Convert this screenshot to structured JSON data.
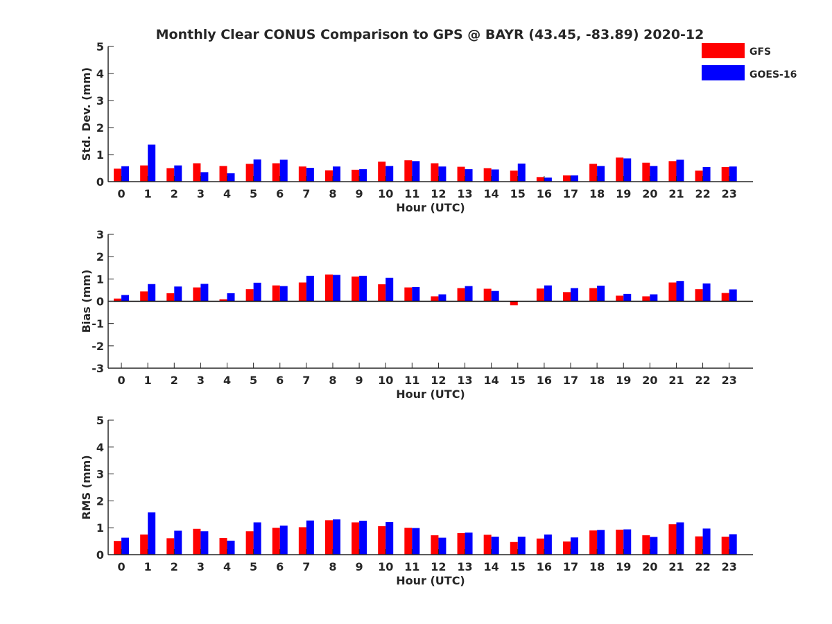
{
  "figure_title": "Monthly Clear CONUS Comparison to GPS @ BAYR (43.45, -83.89) 2020-12",
  "legend": {
    "placement": "top-right",
    "entries": [
      {
        "label": "GFS",
        "color": "#ff0000"
      },
      {
        "label": "GOES-16",
        "color": "#0000ff"
      }
    ]
  },
  "chart_data": [
    {
      "type": "bar",
      "xlabel": "Hour (UTC)",
      "ylabel": "Std. Dev. (mm)",
      "ylim": [
        0,
        5
      ],
      "yticks": [
        0,
        1,
        2,
        3,
        4,
        5
      ],
      "categories": [
        "0",
        "1",
        "2",
        "3",
        "4",
        "5",
        "6",
        "7",
        "8",
        "9",
        "10",
        "11",
        "12",
        "13",
        "14",
        "15",
        "16",
        "17",
        "18",
        "19",
        "20",
        "21",
        "22",
        "23"
      ],
      "series": [
        {
          "name": "GFS",
          "color": "#ff0000",
          "values": [
            0.48,
            0.6,
            0.5,
            0.68,
            0.58,
            0.66,
            0.68,
            0.56,
            0.42,
            0.44,
            0.74,
            0.79,
            0.68,
            0.55,
            0.5,
            0.41,
            0.17,
            0.23,
            0.66,
            0.89,
            0.7,
            0.76,
            0.41,
            0.54
          ]
        },
        {
          "name": "GOES-16",
          "color": "#0000ff",
          "values": [
            0.57,
            1.37,
            0.6,
            0.35,
            0.31,
            0.82,
            0.81,
            0.51,
            0.56,
            0.46,
            0.58,
            0.76,
            0.56,
            0.46,
            0.45,
            0.67,
            0.15,
            0.23,
            0.58,
            0.86,
            0.58,
            0.81,
            0.54,
            0.56
          ]
        }
      ]
    },
    {
      "type": "bar",
      "xlabel": "Hour (UTC)",
      "ylabel": "Bias (mm)",
      "ylim": [
        -3,
        3
      ],
      "yticks": [
        -3,
        -2,
        -1,
        0,
        1,
        2,
        3
      ],
      "categories": [
        "0",
        "1",
        "2",
        "3",
        "4",
        "5",
        "6",
        "7",
        "8",
        "9",
        "10",
        "11",
        "12",
        "13",
        "14",
        "15",
        "16",
        "17",
        "18",
        "19",
        "20",
        "21",
        "22",
        "23"
      ],
      "series": [
        {
          "name": "GFS",
          "color": "#ff0000",
          "values": [
            0.12,
            0.44,
            0.36,
            0.62,
            0.09,
            0.54,
            0.71,
            0.84,
            1.2,
            1.11,
            0.76,
            0.62,
            0.22,
            0.59,
            0.56,
            -0.18,
            0.57,
            0.41,
            0.59,
            0.25,
            0.22,
            0.84,
            0.54,
            0.37
          ]
        },
        {
          "name": "GOES-16",
          "color": "#0000ff",
          "values": [
            0.28,
            0.77,
            0.66,
            0.78,
            0.36,
            0.83,
            0.68,
            1.14,
            1.18,
            1.14,
            1.05,
            0.64,
            0.31,
            0.68,
            0.46,
            0.0,
            0.71,
            0.59,
            0.7,
            0.33,
            0.31,
            0.91,
            0.8,
            0.53
          ]
        }
      ]
    },
    {
      "type": "bar",
      "xlabel": "Hour (UTC)",
      "ylabel": "RMS (mm)",
      "ylim": [
        0,
        5
      ],
      "yticks": [
        0,
        1,
        2,
        3,
        4,
        5
      ],
      "categories": [
        "0",
        "1",
        "2",
        "3",
        "4",
        "5",
        "6",
        "7",
        "8",
        "9",
        "10",
        "11",
        "12",
        "13",
        "14",
        "15",
        "16",
        "17",
        "18",
        "19",
        "20",
        "21",
        "22",
        "23"
      ],
      "series": [
        {
          "name": "GFS",
          "color": "#ff0000",
          "values": [
            0.51,
            0.75,
            0.61,
            0.96,
            0.62,
            0.87,
            1.0,
            1.02,
            1.28,
            1.2,
            1.06,
            1.0,
            0.72,
            0.8,
            0.74,
            0.47,
            0.6,
            0.49,
            0.9,
            0.93,
            0.72,
            1.13,
            0.68,
            0.67
          ]
        },
        {
          "name": "GOES-16",
          "color": "#0000ff",
          "values": [
            0.63,
            1.57,
            0.89,
            0.87,
            0.52,
            1.2,
            1.08,
            1.27,
            1.31,
            1.26,
            1.21,
            0.99,
            0.63,
            0.82,
            0.67,
            0.67,
            0.75,
            0.64,
            0.92,
            0.94,
            0.66,
            1.2,
            0.97,
            0.76
          ]
        }
      ]
    }
  ]
}
